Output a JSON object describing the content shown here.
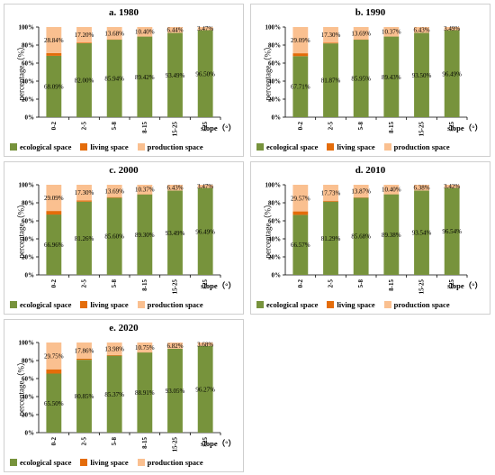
{
  "common": {
    "ylabel": "percentage（%）",
    "xlabel": "slope（°）",
    "legend": [
      "ecological space",
      "living space",
      "production space"
    ],
    "colors": {
      "ecological": "#77933c",
      "living": "#e46c0a",
      "production": "#fac090"
    }
  },
  "chart_data": [
    {
      "type": "bar",
      "title": "a. 1980",
      "categories": [
        "0-2",
        "2-5",
        "5-8",
        "8-15",
        "15-25",
        ">25"
      ],
      "ylim": [
        0,
        100
      ],
      "yticks": [
        "0%",
        "20%",
        "40%",
        "60%",
        "80%",
        "100%"
      ],
      "series": [
        {
          "name": "ecological space",
          "values": [
            68.09,
            82.0,
            85.94,
            89.42,
            93.49,
            96.5
          ],
          "labels": [
            "68.09%",
            "82.00%",
            "85.94%",
            "89.42%",
            "93.49%",
            "96.50%"
          ]
        },
        {
          "name": "living space",
          "values": [
            3.07,
            0.8,
            0.38,
            0.18,
            0.07,
            0.03
          ]
        },
        {
          "name": "production space",
          "values": [
            28.84,
            17.2,
            13.68,
            10.4,
            6.44,
            3.47
          ],
          "labels": [
            "28.84%",
            "17.20%",
            "13.68%",
            "10.40%",
            "6.44%",
            "3.47%"
          ]
        }
      ]
    },
    {
      "type": "bar",
      "title": "b. 1990",
      "categories": [
        "0-2",
        "2-5",
        "5-8",
        "8-15",
        "15-25",
        ">25"
      ],
      "ylim": [
        0,
        100
      ],
      "yticks": [
        "0%",
        "20%",
        "40%",
        "60%",
        "80%",
        "100%"
      ],
      "series": [
        {
          "name": "ecological space",
          "values": [
            67.71,
            81.87,
            85.95,
            89.43,
            93.5,
            96.49
          ],
          "labels": [
            "67.71%",
            "81.87%",
            "85.95%",
            "89.43%",
            "93.50%",
            "96.49%"
          ]
        },
        {
          "name": "living space",
          "values": [
            3.2,
            0.83,
            0.36,
            0.2,
            0.07,
            0.02
          ]
        },
        {
          "name": "production space",
          "values": [
            29.09,
            17.3,
            13.69,
            10.37,
            6.43,
            3.49
          ],
          "labels": [
            "29.09%",
            "17.30%",
            "13.69%",
            "10.37%",
            "6.43%",
            "3.49%"
          ]
        }
      ]
    },
    {
      "type": "bar",
      "title": "c. 2000",
      "categories": [
        "0-2",
        "2-5",
        "5-8",
        "8-15",
        "15-25",
        ">25"
      ],
      "ylim": [
        0,
        100
      ],
      "yticks": [
        "0%",
        "20%",
        "40%",
        "60%",
        "80%",
        "100%"
      ],
      "series": [
        {
          "name": "ecological space",
          "values": [
            66.96,
            81.26,
            85.6,
            89.3,
            93.49,
            96.49
          ],
          "labels": [
            "66.96%",
            "81.26%",
            "85.60%",
            "89.30%",
            "93.49%",
            "96.49%"
          ]
        },
        {
          "name": "living space",
          "values": [
            3.95,
            1.44,
            0.71,
            0.33,
            0.08,
            0.04
          ]
        },
        {
          "name": "production space",
          "values": [
            29.09,
            17.3,
            13.69,
            10.37,
            6.43,
            3.47
          ],
          "labels": [
            "29.09%",
            "17.30%",
            "13.69%",
            "10.37%",
            "6.43%",
            "3.47%"
          ]
        }
      ]
    },
    {
      "type": "bar",
      "title": "d. 2010",
      "categories": [
        "0-2",
        "2-5",
        "5-8",
        "8-15",
        "15-25",
        ">25"
      ],
      "ylim": [
        0,
        100
      ],
      "yticks": [
        "0%",
        "20%",
        "40%",
        "60%",
        "80%",
        "100%"
      ],
      "series": [
        {
          "name": "ecological space",
          "values": [
            66.57,
            81.29,
            85.68,
            89.38,
            93.54,
            96.54
          ],
          "labels": [
            "66.57%",
            "81.29%",
            "85.68%",
            "89.38%",
            "93.54%",
            "96.54%"
          ]
        },
        {
          "name": "living space",
          "values": [
            3.86,
            0.98,
            0.45,
            0.22,
            0.08,
            0.04
          ]
        },
        {
          "name": "production space",
          "values": [
            29.57,
            17.73,
            13.87,
            10.4,
            6.38,
            3.42
          ],
          "labels": [
            "29.57%",
            "17.73%",
            "13.87%",
            "10.40%",
            "6.38%",
            "3.42%"
          ]
        }
      ]
    },
    {
      "type": "bar",
      "title": "e. 2020",
      "categories": [
        "0-2",
        "2-5",
        "5-8",
        "8-15",
        "15-25",
        ">25"
      ],
      "ylim": [
        0,
        100
      ],
      "yticks": [
        "0%",
        "20%",
        "40%",
        "60%",
        "80%",
        "100%"
      ],
      "series": [
        {
          "name": "ecological space",
          "values": [
            65.5,
            80.85,
            85.37,
            88.91,
            93.05,
            96.27
          ],
          "labels": [
            "65.50%",
            "80.85%",
            "85.37%",
            "88.91%",
            "93.05%",
            "96.27%"
          ]
        },
        {
          "name": "living space",
          "values": [
            4.75,
            1.29,
            0.65,
            0.34,
            0.13,
            0.05
          ]
        },
        {
          "name": "production space",
          "values": [
            29.75,
            17.86,
            13.98,
            10.75,
            6.82,
            3.68
          ],
          "labels": [
            "29.75%",
            "17.86%",
            "13.98%",
            "10.75%",
            "6.82%",
            "3.68%"
          ]
        }
      ]
    }
  ]
}
